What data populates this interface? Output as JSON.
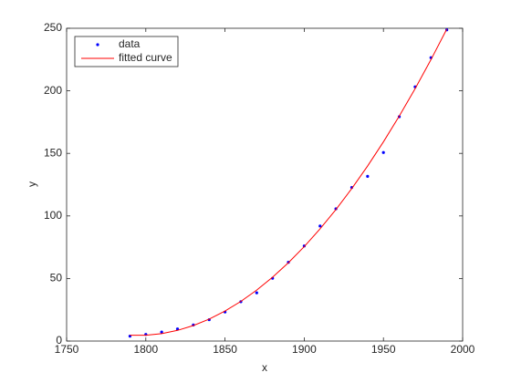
{
  "chart_data": {
    "type": "line",
    "x": [
      1790,
      1800,
      1810,
      1820,
      1830,
      1840,
      1850,
      1860,
      1870,
      1880,
      1890,
      1900,
      1910,
      1920,
      1930,
      1940,
      1950,
      1960,
      1970,
      1980,
      1990
    ],
    "series": [
      {
        "name": "data",
        "color": "#0000ff",
        "mode": "markers",
        "values": [
          3.929,
          5.308,
          7.24,
          9.638,
          12.866,
          17.069,
          23.192,
          31.443,
          38.558,
          50.156,
          62.948,
          75.996,
          91.972,
          105.711,
          122.775,
          131.669,
          150.697,
          179.323,
          203.212,
          226.505,
          248.71
        ]
      },
      {
        "name": "fitted curve",
        "color": "#ff0000",
        "mode": "line",
        "values": [
          4.66,
          4.66,
          5.95,
          8.53,
          12.39,
          17.54,
          23.98,
          31.71,
          40.73,
          51.03,
          62.62,
          75.5,
          89.67,
          105.13,
          121.87,
          139.9,
          159.22,
          179.83,
          201.73,
          224.91,
          249.38
        ]
      }
    ],
    "xlabel": "x",
    "ylabel": "y",
    "xlim": [
      1750,
      2000
    ],
    "xticks": [
      1750,
      1800,
      1850,
      1900,
      1950,
      2000
    ],
    "ylim": [
      0,
      250
    ],
    "yticks": [
      0,
      50,
      100,
      150,
      200,
      250
    ],
    "grid": false,
    "legend": "northwest"
  }
}
